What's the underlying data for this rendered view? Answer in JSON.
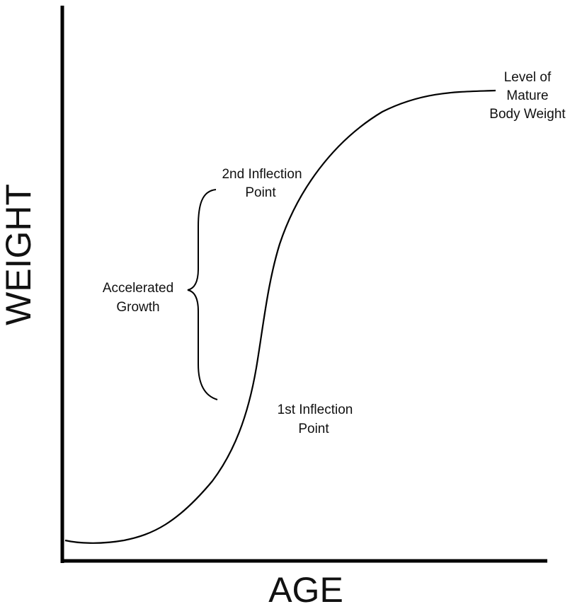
{
  "axes": {
    "y_label": "WEIGHT",
    "x_label": "AGE"
  },
  "annotations": [
    {
      "lines": [
        "Level of",
        "Mature",
        "Body Weight"
      ]
    },
    {
      "lines": [
        "2nd Inflection",
        "Point"
      ]
    },
    {
      "lines": [
        "Accelerated",
        "Growth"
      ]
    },
    {
      "lines": [
        "1st Inflection",
        "Point"
      ]
    }
  ]
}
